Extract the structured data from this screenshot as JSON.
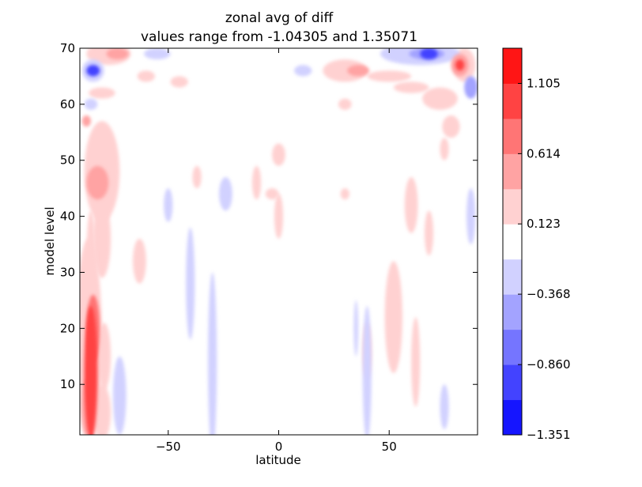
{
  "chart_data": {
    "type": "heatmap",
    "subtype": "filled-contour",
    "title": [
      "zonal avg of diff",
      "values range from -1.04305 and 1.35071"
    ],
    "xlabel": "latitude",
    "ylabel": "model level",
    "xlim": [
      -90,
      90
    ],
    "ylim": [
      1,
      70
    ],
    "xticks": [
      -50,
      0,
      50
    ],
    "xtick_labels": [
      "−50",
      "0",
      "50"
    ],
    "yticks": [
      10,
      20,
      30,
      40,
      50,
      60,
      70
    ],
    "ytick_labels": [
      "10",
      "20",
      "30",
      "40",
      "50",
      "60",
      "70"
    ],
    "colorbar": {
      "levels": [
        -1.351,
        -1.105,
        -0.86,
        -0.614,
        -0.368,
        -0.123,
        0.123,
        0.368,
        0.614,
        0.86,
        1.105,
        1.351
      ],
      "tick_values": [
        -1.351,
        -0.86,
        -0.368,
        0.123,
        0.614,
        1.105
      ],
      "tick_labels": [
        "−1.351",
        "−0.860",
        "−0.368",
        "0.123",
        "0.614",
        "1.105"
      ],
      "colors": [
        "#1515ff",
        "#4343ff",
        "#7575ff",
        "#a3a3ff",
        "#d1d1ff",
        "#ffffff",
        "#ffd1d1",
        "#ffa3a3",
        "#ff7575",
        "#ff4343",
        "#ff1515"
      ]
    },
    "value_range": [
      -1.04305,
      1.35071
    ],
    "features": [
      {
        "lat": -85,
        "lev": 12,
        "rx": 3,
        "ry": 12,
        "value": 0.95
      },
      {
        "lat": -84,
        "lev": 20,
        "rx": 3,
        "ry": 6,
        "value": 0.75
      },
      {
        "lat": -86,
        "lev": 18,
        "rx": 6,
        "ry": 18,
        "value": 0.3
      },
      {
        "lat": -80,
        "lev": 5,
        "rx": 4,
        "ry": 5,
        "value": 0.3
      },
      {
        "lat": -87,
        "lev": 6,
        "rx": 2,
        "ry": 5,
        "value": 0.5
      },
      {
        "lat": -82,
        "lev": 46,
        "rx": 5,
        "ry": 3,
        "value": 0.5
      },
      {
        "lat": -80,
        "lev": 48,
        "rx": 8,
        "ry": 9,
        "value": 0.25
      },
      {
        "lat": -80,
        "lev": 36,
        "rx": 4,
        "ry": 7,
        "value": 0.2
      },
      {
        "lat": -85,
        "lev": 33,
        "rx": 2,
        "ry": 8,
        "value": 0.2
      },
      {
        "lat": -79,
        "lev": 15,
        "rx": 3,
        "ry": 6,
        "value": 0.2
      },
      {
        "lat": -77,
        "lev": 69,
        "rx": 10,
        "ry": 2,
        "value": 0.25
      },
      {
        "lat": -73,
        "lev": 69,
        "rx": 5,
        "ry": 1,
        "value": 0.5
      },
      {
        "lat": -80,
        "lev": 62,
        "rx": 6,
        "ry": 1,
        "value": 0.25
      },
      {
        "lat": -87,
        "lev": 57,
        "rx": 2,
        "ry": 1,
        "value": 0.5
      },
      {
        "lat": -60,
        "lev": 65,
        "rx": 4,
        "ry": 1,
        "value": 0.2
      },
      {
        "lat": -45,
        "lev": 64,
        "rx": 4,
        "ry": 1,
        "value": 0.2
      },
      {
        "lat": -63,
        "lev": 32,
        "rx": 3,
        "ry": 4,
        "value": 0.2
      },
      {
        "lat": -37,
        "lev": 47,
        "rx": 2,
        "ry": 2,
        "value": 0.2
      },
      {
        "lat": -10,
        "lev": 46,
        "rx": 2,
        "ry": 3,
        "value": 0.2
      },
      {
        "lat": 0,
        "lev": 51,
        "rx": 3,
        "ry": 2,
        "value": 0.2
      },
      {
        "lat": 0,
        "lev": 40,
        "rx": 2,
        "ry": 4,
        "value": 0.2
      },
      {
        "lat": -3,
        "lev": 44,
        "rx": 3,
        "ry": 1,
        "value": 0.2
      },
      {
        "lat": 30,
        "lev": 44,
        "rx": 2,
        "ry": 1,
        "value": 0.2
      },
      {
        "lat": 30,
        "lev": 66,
        "rx": 10,
        "ry": 2,
        "value": 0.2
      },
      {
        "lat": 36,
        "lev": 66,
        "rx": 5,
        "ry": 1,
        "value": 0.5
      },
      {
        "lat": 50,
        "lev": 65,
        "rx": 10,
        "ry": 1,
        "value": 0.2
      },
      {
        "lat": 60,
        "lev": 63,
        "rx": 8,
        "ry": 1,
        "value": 0.2
      },
      {
        "lat": 73,
        "lev": 61,
        "rx": 8,
        "ry": 2,
        "value": 0.2
      },
      {
        "lat": 84,
        "lev": 67,
        "rx": 5,
        "ry": 3,
        "value": 0.25
      },
      {
        "lat": 82,
        "lev": 67,
        "rx": 4,
        "ry": 2,
        "value": 0.6
      },
      {
        "lat": 82,
        "lev": 67,
        "rx": 2,
        "ry": 1,
        "value": 1.1
      },
      {
        "lat": 78,
        "lev": 56,
        "rx": 4,
        "ry": 2,
        "value": 0.2
      },
      {
        "lat": 75,
        "lev": 52,
        "rx": 2,
        "ry": 2,
        "value": 0.2
      },
      {
        "lat": 60,
        "lev": 42,
        "rx": 3,
        "ry": 5,
        "value": 0.2
      },
      {
        "lat": 52,
        "lev": 22,
        "rx": 4,
        "ry": 10,
        "value": 0.2
      },
      {
        "lat": 62,
        "lev": 14,
        "rx": 2,
        "ry": 8,
        "value": 0.2
      },
      {
        "lat": 40,
        "lev": 16,
        "rx": 2,
        "ry": 5,
        "value": 0.2
      },
      {
        "lat": 30,
        "lev": 60,
        "rx": 3,
        "ry": 1,
        "value": 0.2
      },
      {
        "lat": 68,
        "lev": 37,
        "rx": 2,
        "ry": 4,
        "value": 0.2
      },
      {
        "lat": 64,
        "lev": 69,
        "rx": 18,
        "ry": 2,
        "value": -0.25
      },
      {
        "lat": 67,
        "lev": 69,
        "rx": 8,
        "ry": 1,
        "value": -0.6
      },
      {
        "lat": 68,
        "lev": 69,
        "rx": 4,
        "ry": 1,
        "value": -1.0
      },
      {
        "lat": -84,
        "lev": 66,
        "rx": 5,
        "ry": 2,
        "value": -0.3
      },
      {
        "lat": -84,
        "lev": 66,
        "rx": 3,
        "ry": 1,
        "value": -0.9
      },
      {
        "lat": -55,
        "lev": 69,
        "rx": 6,
        "ry": 1,
        "value": -0.2
      },
      {
        "lat": -85,
        "lev": 60,
        "rx": 3,
        "ry": 1,
        "value": -0.3
      },
      {
        "lat": 11,
        "lev": 66,
        "rx": 4,
        "ry": 1,
        "value": -0.2
      },
      {
        "lat": 87,
        "lev": 63,
        "rx": 3,
        "ry": 2,
        "value": -0.4
      },
      {
        "lat": 87,
        "lev": 40,
        "rx": 2,
        "ry": 5,
        "value": -0.3
      },
      {
        "lat": -30,
        "lev": 14,
        "rx": 2,
        "ry": 16,
        "value": -0.2
      },
      {
        "lat": -40,
        "lev": 28,
        "rx": 2,
        "ry": 10,
        "value": -0.2
      },
      {
        "lat": -72,
        "lev": 8,
        "rx": 3,
        "ry": 7,
        "value": -0.2
      },
      {
        "lat": -24,
        "lev": 44,
        "rx": 3,
        "ry": 3,
        "value": -0.2
      },
      {
        "lat": -50,
        "lev": 42,
        "rx": 2,
        "ry": 3,
        "value": -0.2
      },
      {
        "lat": 40,
        "lev": 12,
        "rx": 2,
        "ry": 12,
        "value": -0.2
      },
      {
        "lat": 75,
        "lev": 6,
        "rx": 2,
        "ry": 4,
        "value": -0.2
      },
      {
        "lat": 35,
        "lev": 20,
        "rx": 1,
        "ry": 5,
        "value": -0.2
      }
    ]
  }
}
